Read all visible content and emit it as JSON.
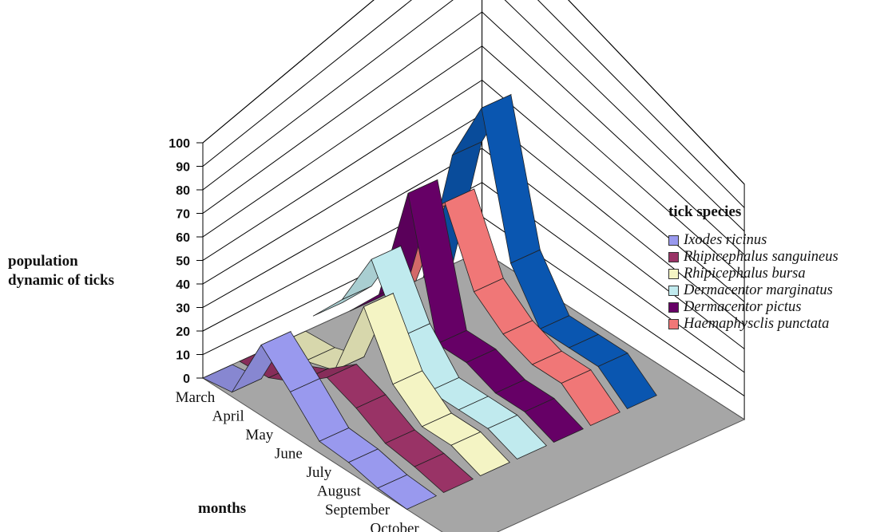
{
  "chart_data": {
    "type": "area",
    "subtype": "3d-ribbon",
    "ylabel": "population dynamic of ticks",
    "xlabel": "months",
    "legend_title": "tick species",
    "legend_position": "right",
    "ylim": [
      0,
      100
    ],
    "yticks": [
      "0",
      "10",
      "20",
      "30",
      "40",
      "50",
      "60",
      "70",
      "80",
      "90",
      "100"
    ],
    "categories": [
      "March",
      "April",
      "May",
      "June",
      "July",
      "August",
      "September",
      "October"
    ],
    "grid": true,
    "series": [
      {
        "name": "Ixodes ricinus",
        "color": "#9999ee",
        "values": [
          0,
          2,
          30,
          18,
          5,
          4,
          1,
          0
        ]
      },
      {
        "name": "Rhipicephalus sanguineus",
        "color": "#993366",
        "values": [
          0,
          1,
          7,
          17,
          12,
          5,
          3,
          0
        ]
      },
      {
        "name": "Rhipicephalus bursa",
        "color": "#f4f4c4",
        "values": [
          0,
          1,
          5,
          40,
          15,
          5,
          5,
          0
        ]
      },
      {
        "name": "Dermacentor marginatus",
        "color": "#c0eaee",
        "values": [
          5,
          20,
          45,
          20,
          5,
          5,
          5,
          0
        ]
      },
      {
        "name": "Dermacentor pictus",
        "color": "#660066",
        "values": [
          0,
          15,
          66,
          10,
          10,
          5,
          5,
          0
        ]
      },
      {
        "name": "Haemaphysclis punctata",
        "color": "#f07777",
        "values": [
          0,
          40,
          55,
          25,
          15,
          10,
          10,
          0
        ]
      },
      {
        "name": "",
        "color": "#0a56b0",
        "values": [
          0,
          60,
          88,
          30,
          10,
          10,
          10,
          0
        ]
      }
    ]
  }
}
